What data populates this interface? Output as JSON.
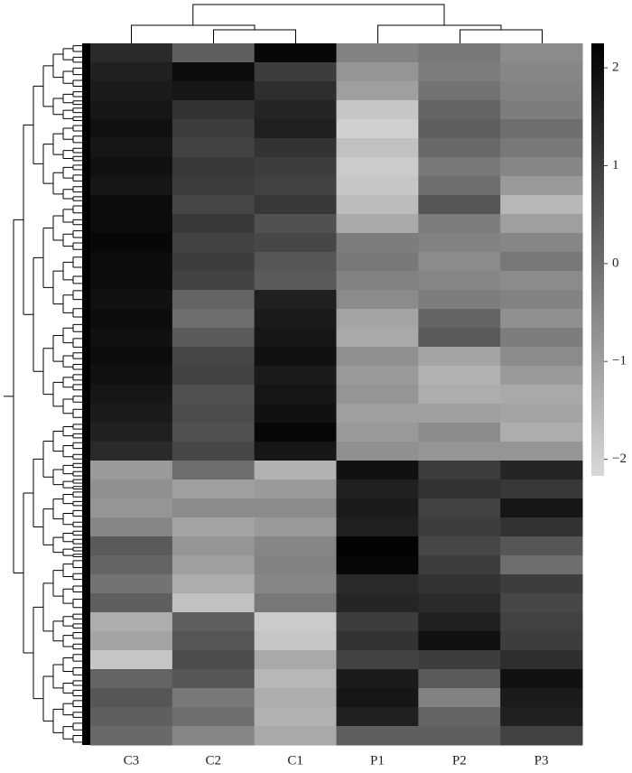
{
  "chart_data": {
    "type": "heatmap",
    "columns": [
      "C3",
      "C2",
      "C1",
      "P1",
      "P2",
      "P3"
    ],
    "values": [
      [
        1.4,
        0.3,
        2.1,
        -0.4,
        -0.2,
        -0.6
      ],
      [
        1.6,
        2.0,
        1.0,
        -0.8,
        -0.3,
        -0.5
      ],
      [
        1.7,
        1.8,
        1.3,
        -1.0,
        -0.1,
        -0.4
      ],
      [
        1.8,
        1.2,
        1.5,
        -1.8,
        0.2,
        -0.3
      ],
      [
        1.9,
        1.0,
        1.6,
        -2.0,
        0.3,
        0.0
      ],
      [
        1.8,
        0.9,
        1.2,
        -1.7,
        0.1,
        -0.2
      ],
      [
        1.9,
        1.1,
        1.0,
        -1.9,
        -0.2,
        -0.5
      ],
      [
        1.8,
        1.0,
        0.9,
        -1.8,
        0.0,
        -0.9
      ],
      [
        2.0,
        0.8,
        1.1,
        -1.6,
        0.5,
        -1.5
      ],
      [
        2.0,
        1.1,
        0.6,
        -1.2,
        -0.3,
        -1.0
      ],
      [
        2.1,
        0.9,
        0.8,
        -0.3,
        -0.4,
        -0.5
      ],
      [
        2.0,
        1.0,
        0.5,
        -0.2,
        -0.6,
        -0.2
      ],
      [
        2.0,
        0.9,
        0.4,
        -0.4,
        -0.5,
        -0.6
      ],
      [
        1.9,
        0.2,
        1.6,
        -0.6,
        -0.3,
        -0.4
      ],
      [
        2.0,
        0.0,
        1.7,
        -1.1,
        0.2,
        -0.7
      ],
      [
        1.9,
        0.4,
        1.8,
        -1.2,
        0.4,
        -0.3
      ],
      [
        2.0,
        0.8,
        1.9,
        -0.7,
        -1.1,
        -0.6
      ],
      [
        1.9,
        0.9,
        1.7,
        -0.9,
        -1.4,
        -0.9
      ],
      [
        1.8,
        0.6,
        1.8,
        -0.8,
        -1.3,
        -1.2
      ],
      [
        1.7,
        0.7,
        1.9,
        -1.0,
        -1.0,
        -1.1
      ],
      [
        1.6,
        0.6,
        2.1,
        -0.9,
        -0.6,
        -1.3
      ],
      [
        1.4,
        0.8,
        1.8,
        -0.7,
        -0.8,
        -0.8
      ],
      [
        -0.9,
        0.0,
        -1.4,
        1.9,
        1.0,
        1.5
      ],
      [
        -0.7,
        -1.0,
        -0.9,
        1.6,
        1.2,
        1.1
      ],
      [
        -0.8,
        -0.6,
        -0.6,
        1.7,
        0.9,
        1.8
      ],
      [
        -0.5,
        -1.1,
        -0.9,
        1.6,
        1.0,
        1.2
      ],
      [
        0.4,
        -0.8,
        -0.5,
        2.2,
        0.8,
        0.5
      ],
      [
        0.2,
        -1.0,
        -0.4,
        2.1,
        1.0,
        0.0
      ],
      [
        -0.1,
        -1.3,
        -0.5,
        1.4,
        1.2,
        1.0
      ],
      [
        0.3,
        -1.7,
        -0.2,
        1.5,
        1.4,
        0.8
      ],
      [
        -1.3,
        0.3,
        -1.9,
        1.0,
        1.6,
        0.9
      ],
      [
        -1.1,
        0.5,
        -1.8,
        1.2,
        1.9,
        1.0
      ],
      [
        -1.8,
        0.7,
        -1.2,
        0.9,
        1.0,
        1.3
      ],
      [
        0.2,
        0.5,
        -1.5,
        1.7,
        0.4,
        1.9
      ],
      [
        0.5,
        -0.2,
        -1.3,
        1.8,
        -0.4,
        1.7
      ],
      [
        0.3,
        0.0,
        -1.4,
        1.6,
        0.2,
        1.6
      ],
      [
        0.1,
        -0.5,
        -1.2,
        0.3,
        0.3,
        0.9
      ]
    ],
    "colorscale": [
      "#d8d8d8",
      "#000000"
    ],
    "clim": [
      -2.17,
      2.25
    ],
    "cticks": [
      {
        "value": -2,
        "label": "−2"
      },
      {
        "value": -1,
        "label": "−1"
      },
      0,
      1,
      2
    ]
  }
}
